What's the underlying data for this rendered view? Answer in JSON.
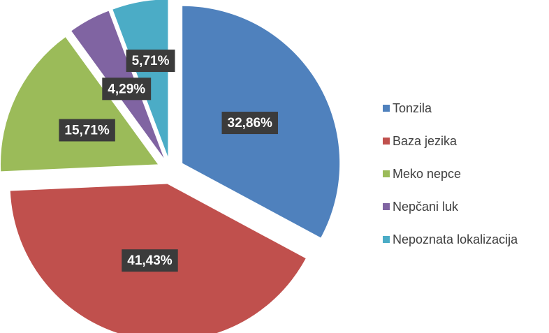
{
  "chart_data": {
    "type": "pie",
    "categories": [
      "Tonzila",
      "Baza jezika",
      "Meko nepce",
      "Nepčani luk",
      "Nepoznata lokalizacija"
    ],
    "values": [
      32.86,
      41.43,
      15.71,
      4.29,
      5.71
    ],
    "value_labels": [
      "32,86%",
      "41,43%",
      "15,71%",
      "4,29%",
      "5,71%"
    ],
    "colors": [
      "#4f81bd",
      "#c0504d",
      "#9bbb59",
      "#8064a2",
      "#4bacc6"
    ],
    "legend": "right"
  }
}
